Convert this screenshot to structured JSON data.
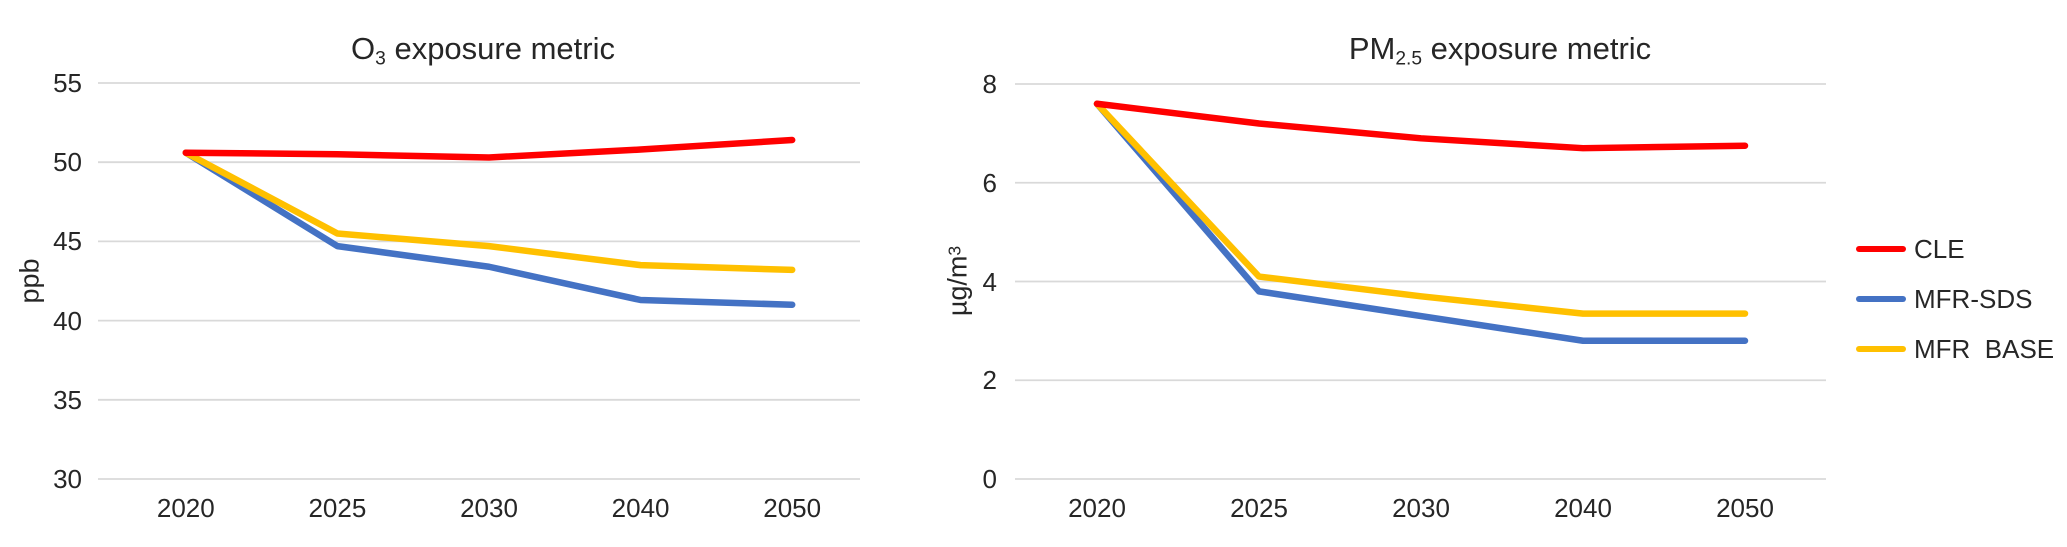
{
  "figure": {
    "background": "#FFFFFF",
    "text_color": "#262626",
    "gridline_color": "#D9D9D9"
  },
  "chart_data": [
    {
      "type": "line",
      "title": "O3 exposure metric",
      "title_parts": {
        "base": "O",
        "sub": "3",
        "rest": " exposure metric"
      },
      "ylabel": "ppb",
      "ylabel_parts": {
        "base": "ppb",
        "sup": ""
      },
      "x_labels": [
        "2020",
        "2025",
        "2030",
        "2040",
        "2050"
      ],
      "ylim": [
        30,
        55
      ],
      "yticks": [
        30,
        35,
        40,
        45,
        50,
        55
      ],
      "grid": "horizontal-only",
      "series": [
        {
          "name": "CLE",
          "color": "#FF0000",
          "values": [
            50.6,
            50.5,
            50.3,
            50.8,
            51.4
          ]
        },
        {
          "name": "MFR-SDS",
          "color": "#4472C4",
          "values": [
            50.6,
            44.7,
            43.4,
            41.3,
            41.0
          ]
        },
        {
          "name": "MFR BASE",
          "color": "#FFC000",
          "values": [
            50.6,
            45.5,
            44.7,
            43.5,
            43.2
          ]
        }
      ]
    },
    {
      "type": "line",
      "title": "PM2.5 exposure metric",
      "title_parts": {
        "base": "PM",
        "sub": "2.5",
        "rest": " exposure metric"
      },
      "ylabel": "µg/m³",
      "ylabel_parts": {
        "base": "µg/m",
        "sup": "3"
      },
      "x_labels": [
        "2020",
        "2025",
        "2030",
        "2040",
        "2050"
      ],
      "ylim": [
        0,
        8
      ],
      "yticks": [
        0,
        2,
        4,
        6,
        8
      ],
      "grid": "horizontal-only",
      "series": [
        {
          "name": "CLE",
          "color": "#FF0000",
          "values": [
            7.6,
            7.2,
            6.9,
            6.7,
            6.75
          ]
        },
        {
          "name": "MFR-SDS",
          "color": "#4472C4",
          "values": [
            7.6,
            3.8,
            3.3,
            2.8,
            2.8
          ]
        },
        {
          "name": "MFR BASE",
          "color": "#FFC000",
          "values": [
            7.6,
            4.1,
            3.7,
            3.35,
            3.35
          ]
        }
      ]
    }
  ],
  "legend": {
    "position": "right-center",
    "items": [
      {
        "label": "CLE",
        "color": "#FF0000"
      },
      {
        "label": "MFR-SDS",
        "color": "#4472C4"
      },
      {
        "label": "MFR  BASE",
        "color": "#FFC000"
      }
    ]
  }
}
